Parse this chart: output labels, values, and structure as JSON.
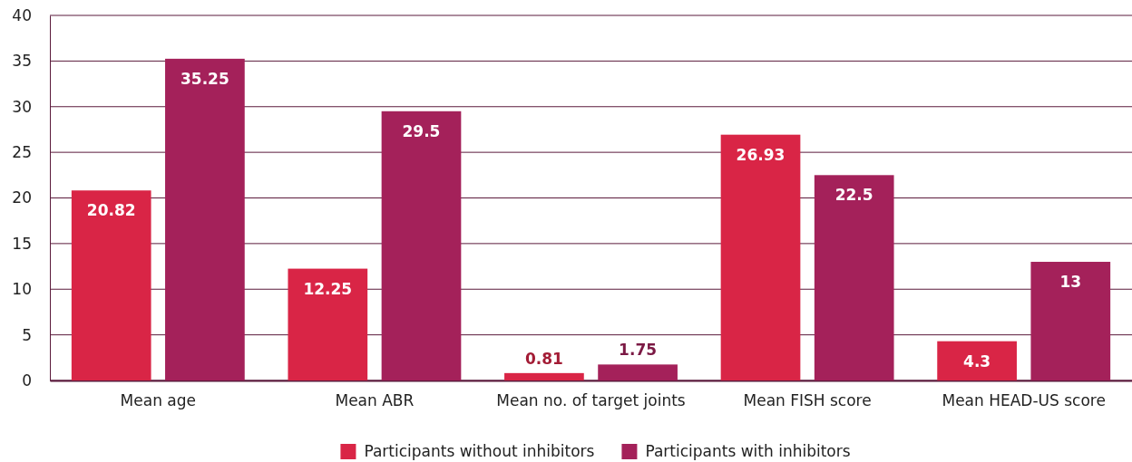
{
  "chart_data": {
    "type": "bar",
    "categories": [
      "Mean age",
      "Mean ABR",
      "Mean no. of target joints",
      "Mean FISH score",
      "Mean HEAD-US score"
    ],
    "series": [
      {
        "name": "Participants without inhibitors",
        "color": "#d92546",
        "values": [
          20.82,
          12.25,
          0.81,
          26.93,
          4.3
        ]
      },
      {
        "name": "Participants with inhibitors",
        "color": "#a4215a",
        "values": [
          35.25,
          29.5,
          1.75,
          22.5,
          13
        ]
      }
    ],
    "ylim": [
      0,
      40
    ],
    "yticks": [
      0,
      5,
      10,
      15,
      20,
      25,
      30,
      35,
      40
    ],
    "grid": "y",
    "legend": "bottom",
    "data_labels": true
  }
}
